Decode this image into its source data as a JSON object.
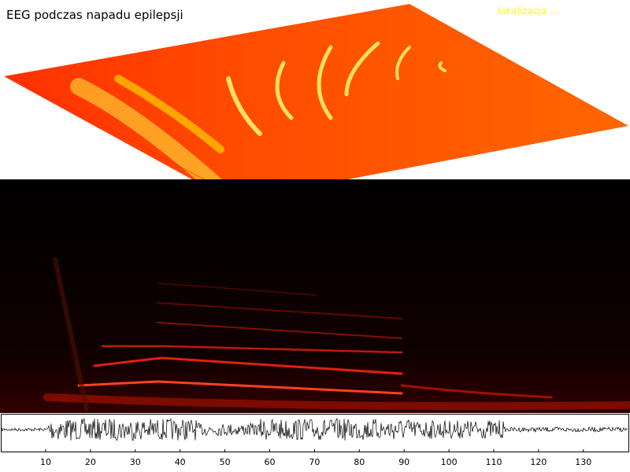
{
  "title": "EEG podczas napadu epilepsji",
  "annotation": "lokalizacja ...",
  "axis": {
    "ticks": [
      10,
      20,
      30,
      40,
      50,
      60,
      70,
      80,
      90,
      100,
      110,
      120,
      130
    ]
  }
}
